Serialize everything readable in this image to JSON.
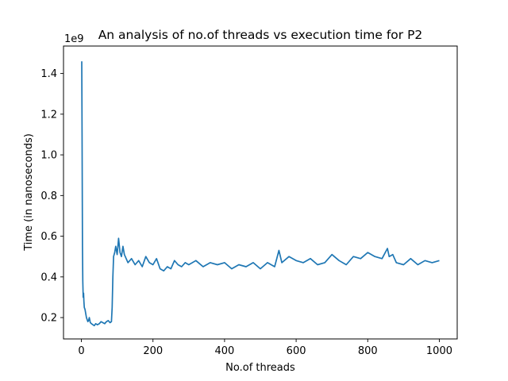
{
  "chart_data": {
    "type": "line",
    "title": "An analysis of no.of threads vs execution time for P2",
    "xlabel": "No.of threads",
    "ylabel": "Time (in nanoseconds)",
    "y_offset_label": "1e9",
    "y_scale": 1000000000,
    "xlim": [
      -50,
      1050
    ],
    "ylim": [
      0.095,
      1.535
    ],
    "x_ticks": [
      0,
      200,
      400,
      600,
      800,
      1000
    ],
    "x_tick_labels": [
      "0",
      "200",
      "400",
      "600",
      "800",
      "1000"
    ],
    "y_ticks": [
      0.2,
      0.4,
      0.6,
      0.8,
      1.0,
      1.2,
      1.4
    ],
    "y_tick_labels": [
      "0.2",
      "0.4",
      "0.6",
      "0.8",
      "1.0",
      "1.2",
      "1.4"
    ],
    "grid": false,
    "legend": "none",
    "line_color": "#1f77b4",
    "series": [
      {
        "x": [
          1,
          2,
          3,
          4,
          5,
          6,
          7,
          8,
          10,
          12,
          14,
          16,
          18,
          20,
          22,
          25,
          28,
          32,
          36,
          40,
          45,
          50,
          55,
          60,
          65,
          70,
          75,
          80,
          84,
          86,
          88,
          90,
          93,
          96,
          100,
          104,
          108,
          112,
          116,
          120,
          130,
          140,
          150,
          160,
          170,
          180,
          190,
          200,
          210,
          220,
          230,
          240,
          250,
          260,
          270,
          280,
          290,
          300,
          320,
          340,
          360,
          380,
          400,
          420,
          440,
          460,
          480,
          500,
          520,
          540,
          552,
          560,
          580,
          600,
          620,
          640,
          660,
          680,
          700,
          720,
          740,
          760,
          780,
          800,
          820,
          840,
          855,
          860,
          870,
          880,
          900,
          920,
          940,
          960,
          980,
          1000
        ],
        "y": [
          1.46,
          1.1,
          0.55,
          0.38,
          0.3,
          0.32,
          0.28,
          0.25,
          0.24,
          0.22,
          0.2,
          0.19,
          0.18,
          0.185,
          0.2,
          0.175,
          0.17,
          0.165,
          0.16,
          0.17,
          0.165,
          0.17,
          0.18,
          0.175,
          0.17,
          0.18,
          0.185,
          0.175,
          0.18,
          0.25,
          0.4,
          0.5,
          0.52,
          0.55,
          0.51,
          0.59,
          0.52,
          0.5,
          0.55,
          0.51,
          0.47,
          0.49,
          0.46,
          0.48,
          0.45,
          0.5,
          0.47,
          0.46,
          0.49,
          0.44,
          0.43,
          0.45,
          0.44,
          0.48,
          0.46,
          0.45,
          0.47,
          0.46,
          0.48,
          0.45,
          0.47,
          0.46,
          0.47,
          0.44,
          0.46,
          0.45,
          0.47,
          0.44,
          0.47,
          0.45,
          0.53,
          0.47,
          0.5,
          0.48,
          0.47,
          0.49,
          0.46,
          0.47,
          0.51,
          0.48,
          0.46,
          0.5,
          0.49,
          0.52,
          0.5,
          0.49,
          0.54,
          0.5,
          0.51,
          0.47,
          0.46,
          0.49,
          0.46,
          0.48,
          0.47,
          0.48
        ]
      }
    ]
  }
}
